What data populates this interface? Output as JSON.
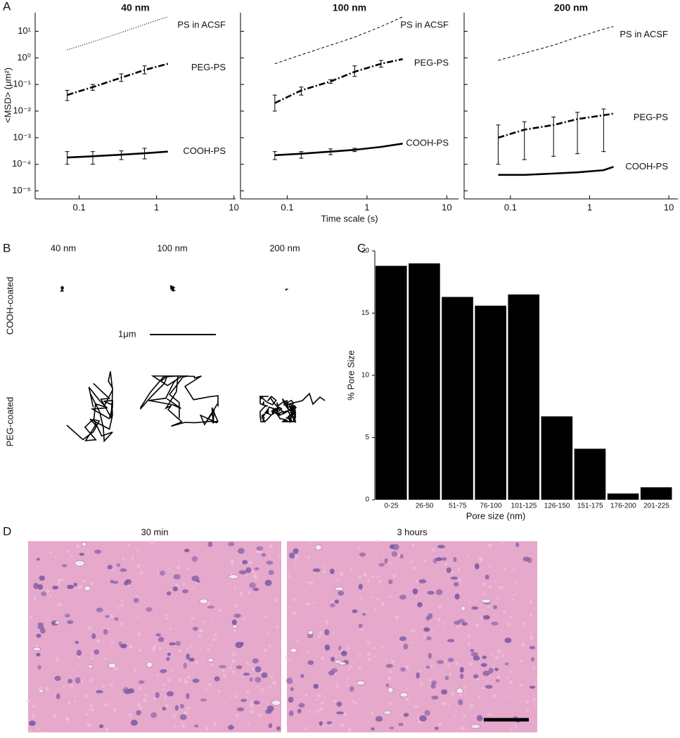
{
  "chart_data": [
    {
      "type": "line",
      "title": "40 nm",
      "log_x": true,
      "log_y": true,
      "y_label": "<MSD> (μm²)",
      "x": [
        0.07,
        0.15,
        0.35,
        0.7,
        1.4
      ],
      "xlim": [
        0.027,
        10.5
      ],
      "xticks": [
        0.1,
        1,
        10
      ],
      "ylim": [
        5e-06,
        50
      ],
      "yticks": [
        {
          "value": 10,
          "label": "10¹"
        },
        {
          "value": 1,
          "label": "10⁰"
        },
        {
          "value": 0.1,
          "label": "10⁻¹"
        },
        {
          "value": 0.01,
          "label": "10⁻²"
        },
        {
          "value": 0.001,
          "label": "10⁻³"
        },
        {
          "value": 0.0001,
          "label": "10⁻⁴"
        },
        {
          "value": 1e-05,
          "label": "10⁻⁵"
        }
      ],
      "series": [
        {
          "name": "PS in ACSF",
          "color": "#000000",
          "line_style": "dotted",
          "values": [
            2,
            4,
            9,
            18,
            35
          ],
          "error_low": [
            null,
            null,
            null,
            null,
            null
          ],
          "error_high": [
            null,
            null,
            null,
            null,
            null
          ]
        },
        {
          "name": "PEG-PS",
          "color": "#000000",
          "line_style": "dash-dot",
          "values": [
            0.04,
            0.08,
            0.18,
            0.35,
            0.6
          ],
          "error_low": [
            0.025,
            0.06,
            0.13,
            0.25,
            null
          ],
          "error_high": [
            0.06,
            0.1,
            0.25,
            0.5,
            null
          ]
        },
        {
          "name": "COOH-PS",
          "color": "#000000",
          "line_style": "solid",
          "values": [
            0.00018,
            0.0002,
            0.00023,
            0.00026,
            0.0003
          ],
          "error_low": [
            0.0001,
            0.0001,
            0.00015,
            0.00016,
            null
          ],
          "error_high": [
            0.0003,
            0.0003,
            0.00032,
            0.0004,
            null
          ]
        }
      ]
    },
    {
      "type": "line",
      "title": "100 nm",
      "log_x": true,
      "log_y": true,
      "x_label": "Time scale (s)",
      "x": [
        0.07,
        0.15,
        0.35,
        0.7,
        1.5,
        2.8
      ],
      "xlim": [
        0.026,
        14
      ],
      "xticks": [
        0.1,
        1,
        10
      ],
      "ylim": [
        5e-06,
        50
      ],
      "yticks": [
        10,
        1,
        0.1,
        0.01,
        0.001,
        0.0001,
        1e-05
      ],
      "series": [
        {
          "name": "PS in ACSF",
          "color": "#000000",
          "line_style": "dashed",
          "values": [
            0.6,
            1.3,
            3,
            6,
            15,
            35
          ],
          "error_low": [
            null,
            null,
            null,
            null,
            null,
            null
          ],
          "error_high": [
            null,
            null,
            null,
            null,
            null,
            null
          ]
        },
        {
          "name": "PEG-PS",
          "color": "#000000",
          "line_style": "dash-dot",
          "values": [
            0.02,
            0.06,
            0.13,
            0.3,
            0.6,
            0.9
          ],
          "error_low": [
            0.01,
            0.04,
            0.11,
            0.2,
            0.45,
            null
          ],
          "error_high": [
            0.04,
            0.08,
            0.15,
            0.5,
            0.8,
            null
          ]
        },
        {
          "name": "COOH-PS",
          "color": "#000000",
          "line_style": "solid",
          "values": [
            0.00022,
            0.00025,
            0.0003,
            0.00035,
            0.00045,
            0.0006
          ],
          "error_low": [
            0.00015,
            0.00017,
            0.00023,
            0.0003,
            null,
            null
          ],
          "error_high": [
            0.0003,
            0.0003,
            0.00038,
            0.0004,
            null,
            null
          ]
        }
      ]
    },
    {
      "type": "line",
      "title": "200 nm",
      "log_x": true,
      "log_y": true,
      "x": [
        0.07,
        0.15,
        0.35,
        0.7,
        1.5,
        2
      ],
      "xlim": [
        0.026,
        13
      ],
      "xticks": [
        0.1,
        1,
        10
      ],
      "ylim": [
        5e-06,
        50
      ],
      "yticks": [
        10,
        1,
        0.1,
        0.01,
        0.001,
        0.0001,
        1e-05
      ],
      "series": [
        {
          "name": "PS in ACSF",
          "color": "#000000",
          "line_style": "dashed",
          "values": [
            0.8,
            1.5,
            3,
            6,
            12,
            15
          ],
          "error_low": [
            null,
            null,
            null,
            null,
            null,
            null
          ],
          "error_high": [
            null,
            null,
            null,
            null,
            null,
            null
          ]
        },
        {
          "name": "PEG-PS",
          "color": "#000000",
          "line_style": "dash-dot",
          "values": [
            0.001,
            0.002,
            0.003,
            0.005,
            0.007,
            0.008
          ],
          "error_low": [
            0.0001,
            0.00015,
            0.0002,
            0.00025,
            0.0003,
            null
          ],
          "error_high": [
            0.003,
            0.004,
            0.006,
            0.009,
            0.012,
            null
          ]
        },
        {
          "name": "COOH-PS",
          "color": "#000000",
          "line_style": "solid",
          "values": [
            4e-05,
            4e-05,
            4.5e-05,
            5e-05,
            6e-05,
            8e-05
          ],
          "error_low": [
            null,
            null,
            null,
            null,
            null,
            null
          ],
          "error_high": [
            null,
            null,
            null,
            null,
            null,
            null
          ]
        }
      ]
    },
    {
      "type": "bar",
      "y_label": "% Pore Size",
      "x_label": "Pore size (nm)",
      "color": "#000000",
      "categories": [
        "0-25",
        "26-50",
        "51-75",
        "76-100",
        "101-125",
        "126-150",
        "151-175",
        "176-200",
        "201-225"
      ],
      "values": [
        18.8,
        19,
        16.3,
        15.6,
        16.5,
        6.7,
        4.1,
        0.5,
        1.0
      ],
      "ylim": [
        0,
        20
      ],
      "yticks": [
        0,
        5,
        10,
        15,
        20
      ]
    }
  ],
  "panel_labels": [
    "A",
    "B",
    "C",
    "D"
  ],
  "panel_b": {
    "columns": [
      "40 nm",
      "100 nm",
      "200 nm"
    ],
    "rows": [
      "COOH-coated",
      "PEG-coated"
    ],
    "scale_bar": "1μm"
  },
  "panel_d": {
    "titles": [
      "30 min",
      "3 hours"
    ]
  }
}
